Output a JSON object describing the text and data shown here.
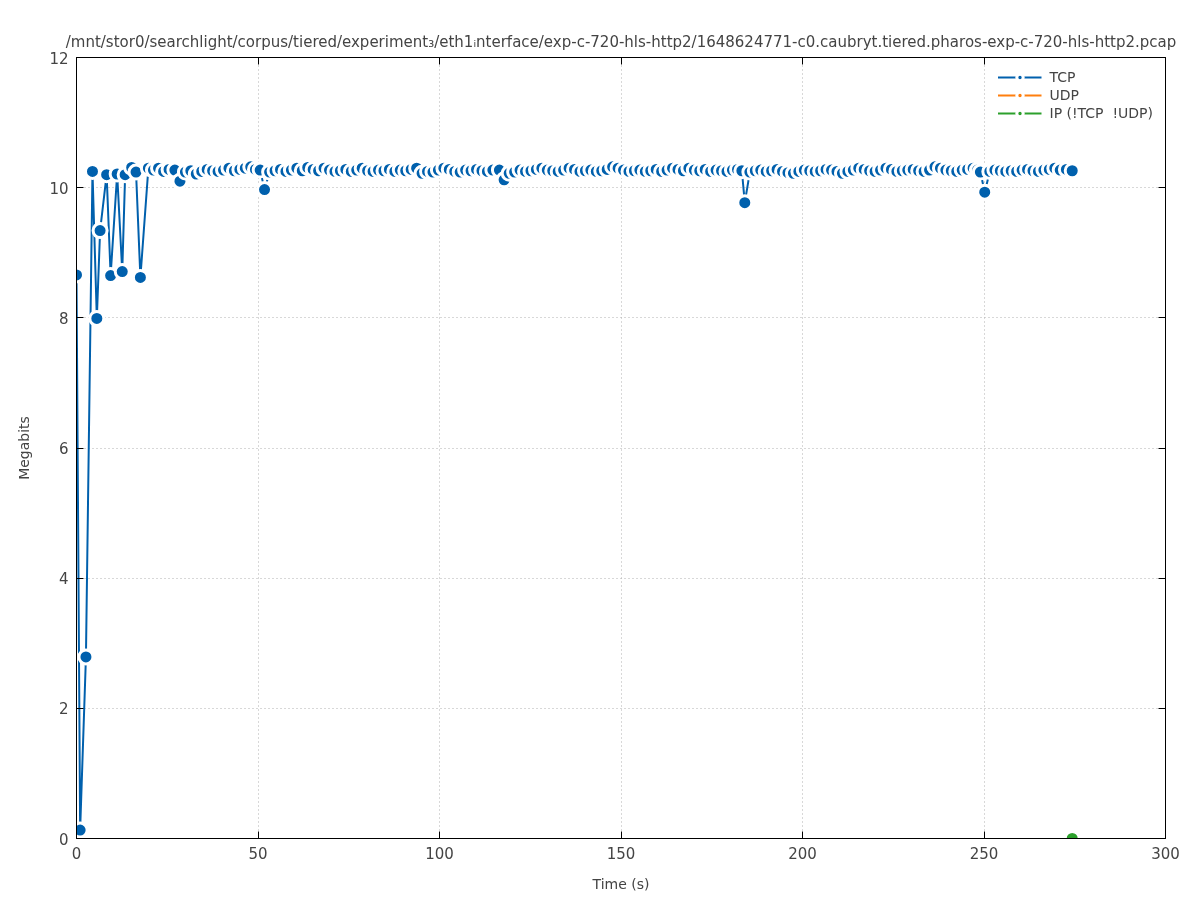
{
  "chart_data": {
    "type": "line",
    "title": "/mnt/stor0/searchlight/corpus/tiered/experiment₃/eth1ᵢnterface/exp-c-720-hls-http2/1648624771-c0.caubryt.tiered.pharos-exp-c-720-hls-http2.pcap",
    "xlabel": "Time (s)",
    "ylabel": "Megabits",
    "xlim": [
      0,
      300
    ],
    "ylim": [
      0,
      12
    ],
    "xticks": [
      0,
      50,
      100,
      150,
      200,
      250,
      300
    ],
    "yticks": [
      0,
      2,
      4,
      6,
      8,
      10,
      12
    ],
    "grid": true,
    "legend": "top right",
    "marker": "circle",
    "line_style": "solid",
    "series": [
      {
        "name": "TCP",
        "color": "#0060ad",
        "x": [
          0,
          1,
          2.6,
          4.4,
          5.6,
          6.5,
          8.3,
          9.4,
          11.2,
          12.6,
          13.4,
          15.2,
          16.4,
          17.6,
          19.8,
          21.2,
          22.6,
          24,
          25.5,
          27.1,
          28.5,
          30,
          31.5,
          33,
          34.5,
          36,
          37.5,
          39,
          40.5,
          42,
          43.5,
          45,
          46.5,
          48,
          49.3,
          50.6,
          51.8,
          53.2,
          54.7,
          56.2,
          57.7,
          59.2,
          60.7,
          62.2,
          63.7,
          65.2,
          66.7,
          68.2,
          69.7,
          71.2,
          72.7,
          74.2,
          75.7,
          77.2,
          78.7,
          80.2,
          81.7,
          83.2,
          84.7,
          86.2,
          87.7,
          89.2,
          90.7,
          92.2,
          93.7,
          95.2,
          96.7,
          98.2,
          99.7,
          101.2,
          102.7,
          104.2,
          105.7,
          107.2,
          108.7,
          110.2,
          111.7,
          113.2,
          114.7,
          116.5,
          117.8,
          119.2,
          120.7,
          122.2,
          123.7,
          125.2,
          126.7,
          128.2,
          129.7,
          131.2,
          132.7,
          134.2,
          135.7,
          137.2,
          138.7,
          140.2,
          141.7,
          143.2,
          144.7,
          146.2,
          147.7,
          149.2,
          150.7,
          152.2,
          153.7,
          155.2,
          156.7,
          158.2,
          159.7,
          161.2,
          162.7,
          164.2,
          165.7,
          167.2,
          168.7,
          170.2,
          171.7,
          173.2,
          174.7,
          176.2,
          177.7,
          179.2,
          180.7,
          182.1,
          183.3,
          184.1,
          185.5,
          187,
          188.5,
          190,
          191.5,
          193,
          194.5,
          196,
          197.5,
          199,
          200.5,
          202,
          203.5,
          205,
          206.5,
          208,
          209.5,
          211,
          212.5,
          214,
          215.5,
          217,
          218.5,
          220,
          221.5,
          223,
          224.5,
          226,
          227.5,
          229,
          230.5,
          232,
          233.5,
          235,
          236.5,
          238,
          239.5,
          241,
          242.5,
          244,
          245.5,
          247,
          248.2,
          249,
          250.2,
          251.6,
          253,
          254.5,
          256,
          257.5,
          259,
          260.5,
          262,
          263.5,
          265,
          266.5,
          268,
          269.5,
          271,
          272.7,
          274.3
        ],
        "values": [
          8.66,
          0.13,
          2.79,
          10.25,
          7.99,
          9.34,
          10.2,
          8.65,
          10.21,
          8.71,
          10.2,
          10.31,
          10.24,
          8.62,
          10.3,
          10.27,
          10.3,
          10.25,
          10.28,
          10.27,
          10.1,
          10.24,
          10.26,
          10.21,
          10.25,
          10.28,
          10.26,
          10.25,
          10.27,
          10.3,
          10.26,
          10.28,
          10.3,
          10.32,
          10.28,
          10.27,
          9.97,
          10.24,
          10.26,
          10.28,
          10.25,
          10.27,
          10.3,
          10.26,
          10.31,
          10.28,
          10.26,
          10.3,
          10.27,
          10.25,
          10.26,
          10.28,
          10.25,
          10.27,
          10.3,
          10.26,
          10.25,
          10.27,
          10.26,
          10.28,
          10.25,
          10.27,
          10.26,
          10.28,
          10.3,
          10.22,
          10.25,
          10.24,
          10.27,
          10.3,
          10.28,
          10.25,
          10.24,
          10.27,
          10.26,
          10.28,
          10.26,
          10.25,
          10.27,
          10.27,
          10.12,
          10.22,
          10.24,
          10.27,
          10.25,
          10.26,
          10.28,
          10.3,
          10.27,
          10.26,
          10.25,
          10.27,
          10.3,
          10.28,
          10.25,
          10.26,
          10.27,
          10.25,
          10.26,
          10.28,
          10.32,
          10.3,
          10.27,
          10.25,
          10.26,
          10.27,
          10.25,
          10.26,
          10.28,
          10.25,
          10.27,
          10.3,
          10.28,
          10.26,
          10.3,
          10.27,
          10.26,
          10.28,
          10.25,
          10.27,
          10.26,
          10.25,
          10.27,
          10.28,
          10.26,
          9.77,
          10.24,
          10.26,
          10.27,
          10.25,
          10.26,
          10.28,
          10.25,
          10.23,
          10.22,
          10.25,
          10.27,
          10.26,
          10.25,
          10.26,
          10.28,
          10.27,
          10.25,
          10.22,
          10.25,
          10.27,
          10.3,
          10.28,
          10.26,
          10.25,
          10.27,
          10.3,
          10.28,
          10.25,
          10.26,
          10.27,
          10.28,
          10.26,
          10.25,
          10.27,
          10.32,
          10.3,
          10.27,
          10.26,
          10.25,
          10.27,
          10.28,
          10.3,
          10.27,
          10.24,
          9.93,
          10.25,
          10.27,
          10.26,
          10.25,
          10.26,
          10.25,
          10.27,
          10.28,
          10.26,
          10.25,
          10.27,
          10.28,
          10.3,
          10.27,
          10.28,
          10.26
        ]
      },
      {
        "name": "UDP",
        "color": "#ff7f0e"
      },
      {
        "name": "IP (!TCP  !UDP)",
        "color": "#2ca02c",
        "x": [
          274.3
        ],
        "values": [
          0
        ]
      }
    ]
  }
}
